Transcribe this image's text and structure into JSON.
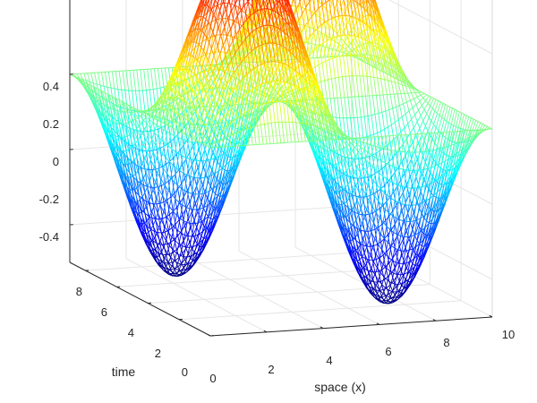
{
  "chart_data": {
    "type": "surface-mesh",
    "title": "",
    "xlabel": "space (x)",
    "ylabel": "time",
    "zlabel": "",
    "x_range": [
      0,
      10
    ],
    "y_range": [
      0,
      9
    ],
    "z_range": [
      -0.5,
      0.5
    ],
    "x_ticks": [
      "0",
      "2",
      "4",
      "6",
      "8",
      "10"
    ],
    "y_ticks": [
      "0",
      "2",
      "4",
      "6",
      "8"
    ],
    "z_ticks": [
      "-0.4",
      "-0.2",
      "0",
      "0.2",
      "0.4"
    ],
    "colormap": "jet",
    "grid": true,
    "surface_formula": "u(x,t) = 0.5 * sin(pi*x/5) * sin(2*pi*t/9)",
    "sample_points": [
      {
        "x": 2.5,
        "t": 2.25,
        "u": 0.5
      },
      {
        "x": 7.5,
        "t": 2.25,
        "u": -0.5
      },
      {
        "x": 2.5,
        "t": 6.75,
        "u": -0.5
      },
      {
        "x": 7.5,
        "t": 6.75,
        "u": 0.5
      },
      {
        "x": 0,
        "t": 4.5,
        "u": 0
      },
      {
        "x": 5,
        "t": 4.5,
        "u": 0
      },
      {
        "x": 10,
        "t": 0,
        "u": 0
      }
    ]
  }
}
